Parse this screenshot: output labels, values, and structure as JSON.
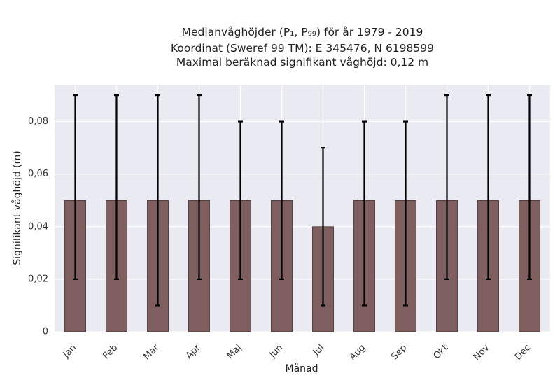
{
  "chart_data": {
    "type": "bar",
    "title_lines": [
      "Medianvåghöjder (P₁, P₉₉) för år 1979 - 2019",
      "Koordinat (Sweref 99 TM): E 345476, N 6198599",
      "Maximal beräknad signifikant våghöjd: 0,12 m"
    ],
    "xlabel": "Månad",
    "ylabel": "Signifikant våghöjd (m)",
    "categories": [
      "Jan",
      "Feb",
      "Mar",
      "Apr",
      "Maj",
      "Jun",
      "Jul",
      "Aug",
      "Sep",
      "Okt",
      "Nov",
      "Dec"
    ],
    "values": [
      0.05,
      0.05,
      0.05,
      0.05,
      0.05,
      0.05,
      0.04,
      0.05,
      0.05,
      0.05,
      0.05,
      0.05
    ],
    "p1": [
      0.02,
      0.02,
      0.01,
      0.02,
      0.02,
      0.02,
      0.01,
      0.01,
      0.01,
      0.02,
      0.02,
      0.02
    ],
    "p99": [
      0.09,
      0.09,
      0.09,
      0.09,
      0.08,
      0.08,
      0.07,
      0.08,
      0.08,
      0.09,
      0.09,
      0.09
    ],
    "ylim": [
      0,
      0.094
    ],
    "yticks": [
      0,
      0.02,
      0.04,
      0.06,
      0.08
    ],
    "ytick_labels": [
      "0",
      "0,02",
      "0,04",
      "0,06",
      "0,08"
    ],
    "grid": true,
    "colors": {
      "bar": "#7e5e5e",
      "bar_edge": "#3d2a2a",
      "plot_bg": "#eaeaf2",
      "grid": "#ffffff",
      "errorbar": "#000000"
    }
  }
}
